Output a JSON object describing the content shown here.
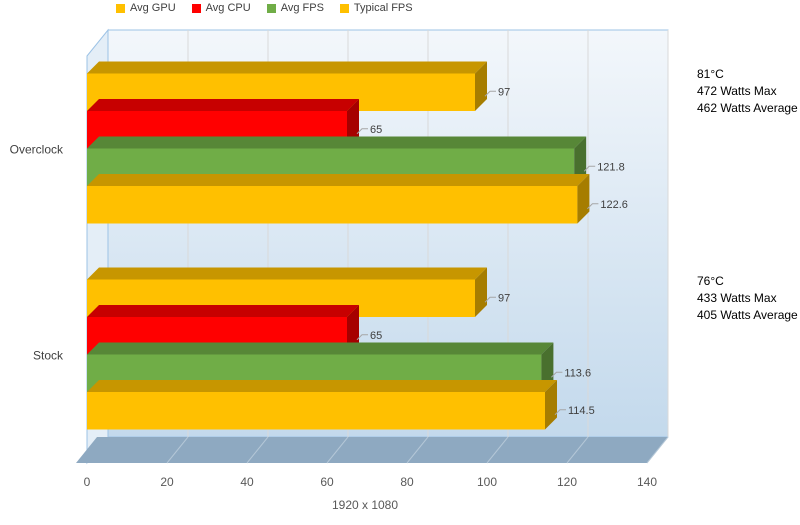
{
  "chart_data": {
    "type": "bar",
    "orientation": "horizontal",
    "style": "3d",
    "categories": [
      "Overclock",
      "Stock"
    ],
    "series": [
      {
        "name": "Avg GPU",
        "color": "#FFC000",
        "values": [
          97,
          97
        ]
      },
      {
        "name": "Avg CPU",
        "color": "#FF0000",
        "values": [
          65,
          65
        ]
      },
      {
        "name": "Avg FPS",
        "color": "#70AD47",
        "values": [
          121.8,
          113.6
        ]
      },
      {
        "name": "Typical FPS",
        "color": "#FFC000",
        "values": [
          122.6,
          114.5
        ]
      }
    ],
    "xlabel": "1920 x 1080",
    "xlim": [
      0,
      140
    ],
    "xticks": [
      0,
      20,
      40,
      60,
      80,
      100,
      120,
      140
    ],
    "grid": true,
    "legend_position": "top",
    "annotations": [
      {
        "category": "Overclock",
        "lines": [
          "81°C",
          "472 Watts Max",
          "462 Watts Average"
        ]
      },
      {
        "category": "Stock",
        "lines": [
          "76°C",
          "433 Watts Max",
          "405 Watts Average"
        ]
      }
    ]
  }
}
